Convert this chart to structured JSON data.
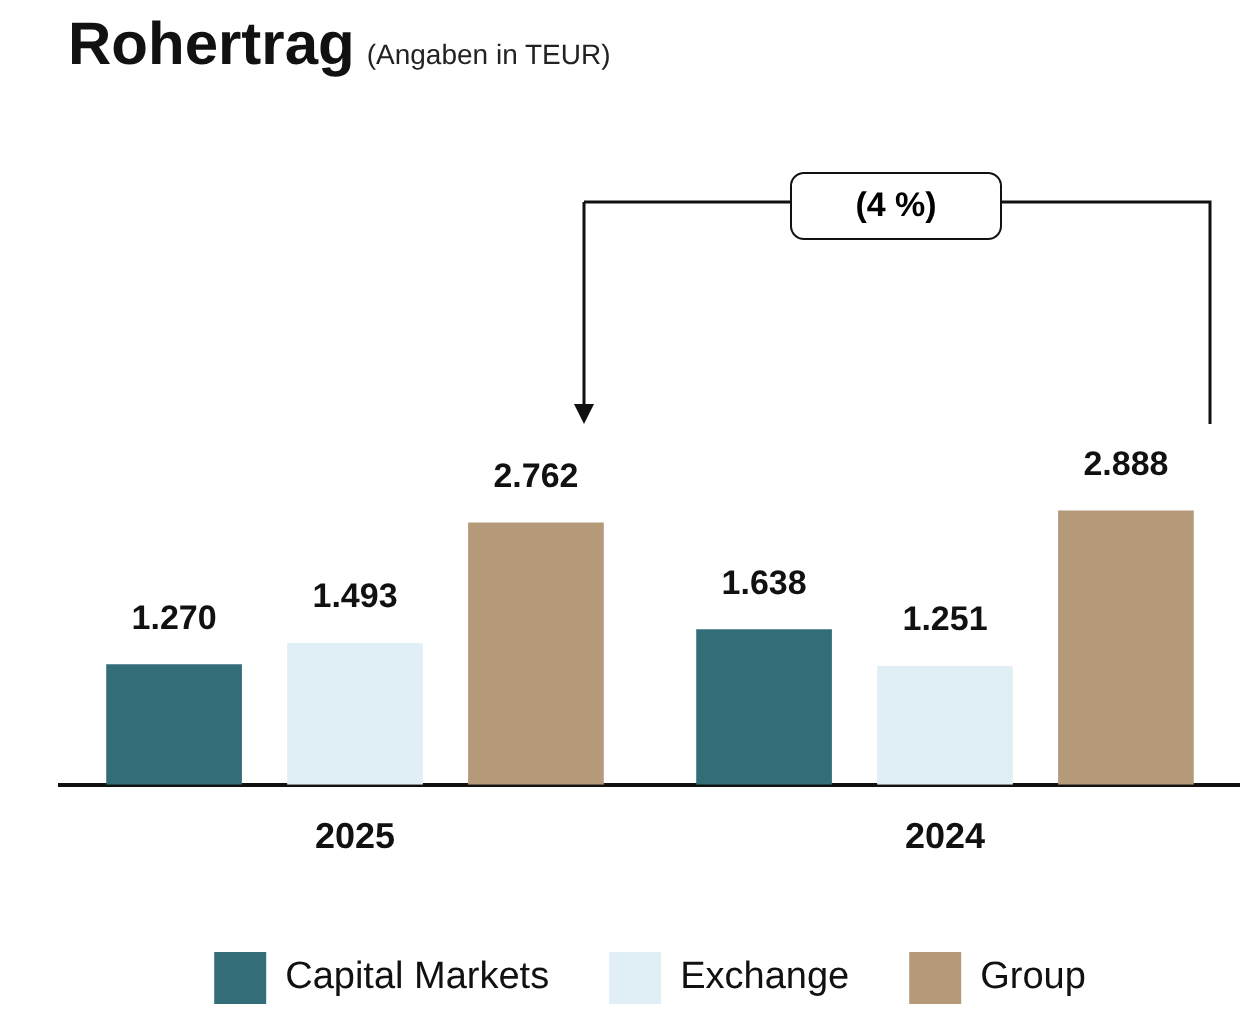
{
  "chart_data": {
    "type": "bar",
    "title": "Rohertrag",
    "subtitle": "(Angaben in TEUR)",
    "categories": [
      "2025",
      "2024"
    ],
    "series": [
      {
        "name": "Capital Markets",
        "color": "#336e78",
        "values": [
          1270,
          1638
        ],
        "value_labels": [
          "1.270",
          "1.638"
        ]
      },
      {
        "name": "Exchange",
        "color": "#e0eff5",
        "values": [
          1493,
          1251
        ],
        "value_labels": [
          "1.493",
          "1.251"
        ]
      },
      {
        "name": "Group",
        "color": "#b59a7a",
        "values": [
          2762,
          2888
        ],
        "value_labels": [
          "2.762",
          "2.888"
        ]
      }
    ],
    "annotations": [
      "(4 %)"
    ],
    "legend": "bottom"
  }
}
